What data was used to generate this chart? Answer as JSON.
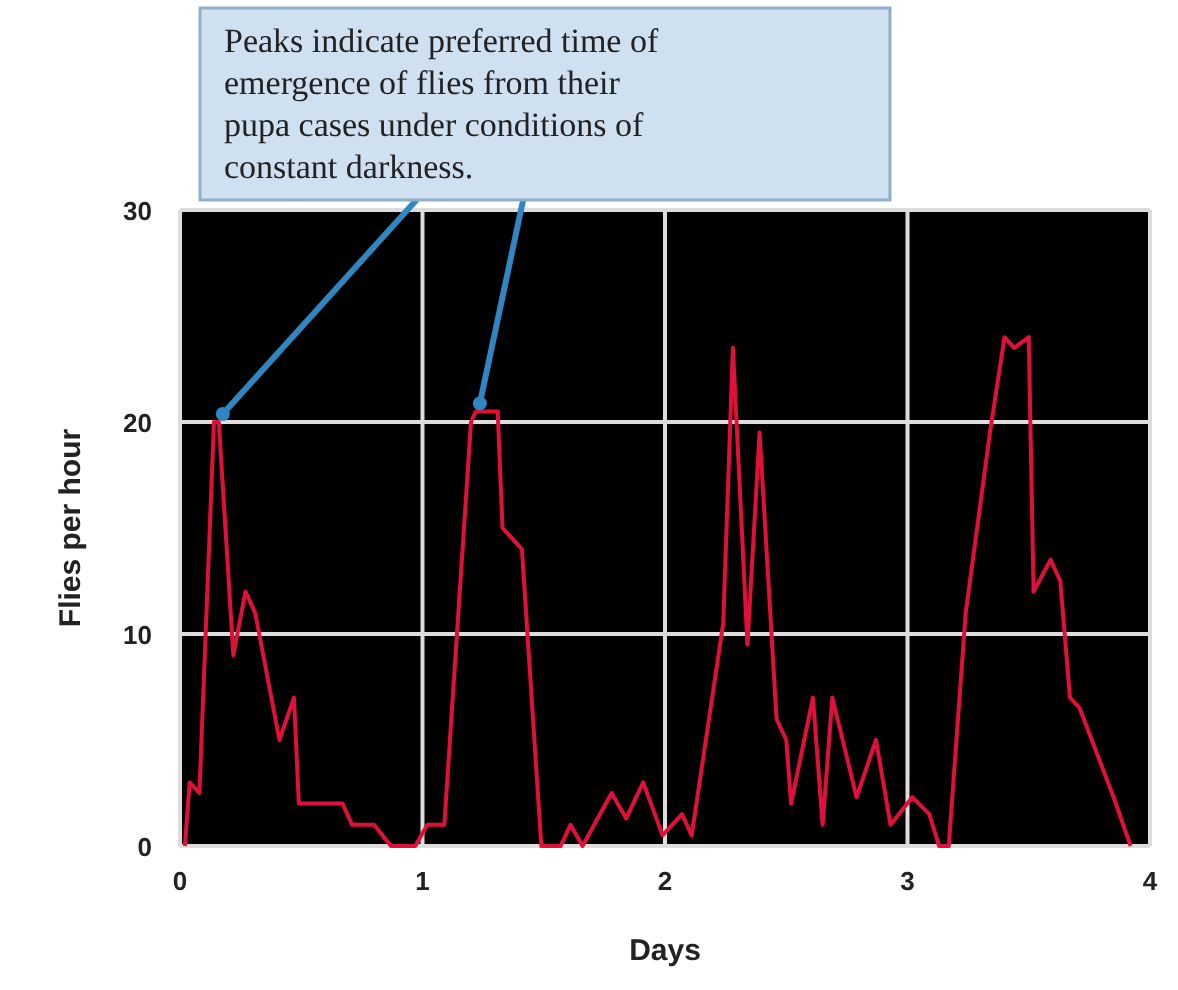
{
  "chart_data": {
    "type": "line",
    "xlabel": "Days",
    "ylabel": "Flies per hour",
    "annotations": [
      {
        "text": "Peaks indicate preferred time of emergence of flies from their pupa cases under conditions of constant darkness.",
        "x": 0.16,
        "y": 20
      }
    ],
    "x": [
      0.02,
      0.04,
      0.08,
      0.14,
      0.16,
      0.22,
      0.27,
      0.31,
      0.41,
      0.47,
      0.49,
      0.52,
      0.67,
      0.71,
      0.8,
      0.87,
      0.97,
      1.02,
      1.09,
      1.2,
      1.22,
      1.31,
      1.33,
      1.41,
      1.49,
      1.57,
      1.61,
      1.66,
      1.78,
      1.84,
      1.91,
      1.99,
      2.07,
      2.11,
      2.24,
      2.28,
      2.34,
      2.39,
      2.46,
      2.5,
      2.52,
      2.61,
      2.65,
      2.69,
      2.79,
      2.87,
      2.93,
      3.02,
      3.09,
      3.13,
      3.17,
      3.24,
      3.34,
      3.4,
      3.44,
      3.5,
      3.52,
      3.59,
      3.63,
      3.67,
      3.71,
      3.85,
      3.92
    ],
    "series": [
      {
        "color": "#e0103a",
        "values": [
          0,
          3,
          2.5,
          20,
          20,
          9,
          12,
          11,
          5,
          7,
          2,
          2,
          2,
          1,
          1,
          0,
          0,
          1,
          1,
          20,
          20.5,
          20.5,
          15,
          14,
          0,
          0,
          1,
          0,
          2.5,
          1.3,
          3,
          0.5,
          1.5,
          0.5,
          10.5,
          23.5,
          9.5,
          19.5,
          6,
          5,
          2,
          7,
          1,
          7,
          2.3,
          5,
          1,
          2.3,
          1.5,
          0,
          0,
          11,
          19.5,
          24,
          23.5,
          24,
          12,
          13.5,
          12.5,
          7,
          6.5,
          2.3,
          0
        ]
      }
    ],
    "xlim": [
      0,
      4
    ],
    "xticks": [
      0,
      1,
      2,
      3,
      4
    ],
    "ylim": [
      0,
      30
    ],
    "yticks": [
      0,
      10,
      20,
      30
    ],
    "grid": true,
    "marker": "none",
    "line_style": "solid"
  }
}
